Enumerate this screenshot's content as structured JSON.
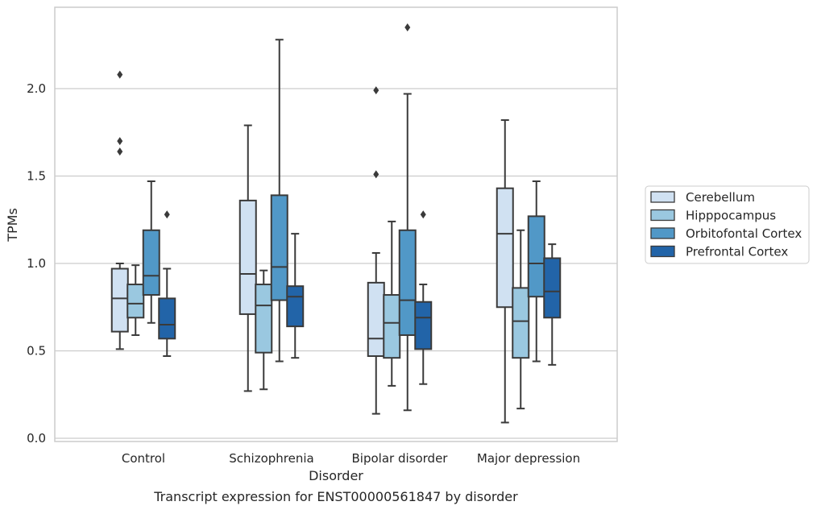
{
  "chart_data": {
    "type": "box",
    "xlabel": "Disorder",
    "ylabel": "TPMs",
    "caption": "Transcript expression for ENST00000561847 by disorder",
    "categories": [
      "Control",
      "Schizophrenia",
      "Bipolar disorder",
      "Major depression"
    ],
    "ylim": [
      -0.02,
      2.45
    ],
    "yticks": [
      "0.0",
      "0.5",
      "1.0",
      "1.5",
      "2.0"
    ],
    "grid": "horizontal",
    "legend_position": "right",
    "series": [
      {
        "name": "Cerebellum",
        "color": "#d0e1f2",
        "boxes": [
          {
            "whisker_low": 0.51,
            "q1": 0.61,
            "median": 0.8,
            "q3": 0.97,
            "whisker_high": 1.0,
            "outliers": [
              2.08,
              1.7,
              1.64
            ]
          },
          {
            "whisker_low": 0.27,
            "q1": 0.71,
            "median": 0.94,
            "q3": 1.36,
            "whisker_high": 1.79,
            "outliers": []
          },
          {
            "whisker_low": 0.14,
            "q1": 0.47,
            "median": 0.57,
            "q3": 0.89,
            "whisker_high": 1.06,
            "outliers": [
              1.99,
              1.51
            ]
          },
          {
            "whisker_low": 0.09,
            "q1": 0.75,
            "median": 1.17,
            "q3": 1.43,
            "whisker_high": 1.82,
            "outliers": []
          }
        ]
      },
      {
        "name": "Hipppocampus",
        "color": "#9ac8e0",
        "boxes": [
          {
            "whisker_low": 0.59,
            "q1": 0.69,
            "median": 0.77,
            "q3": 0.88,
            "whisker_high": 0.99,
            "outliers": []
          },
          {
            "whisker_low": 0.28,
            "q1": 0.49,
            "median": 0.76,
            "q3": 0.88,
            "whisker_high": 0.96,
            "outliers": []
          },
          {
            "whisker_low": 0.3,
            "q1": 0.46,
            "median": 0.66,
            "q3": 0.82,
            "whisker_high": 1.24,
            "outliers": []
          },
          {
            "whisker_low": 0.17,
            "q1": 0.46,
            "median": 0.67,
            "q3": 0.86,
            "whisker_high": 1.19,
            "outliers": []
          }
        ]
      },
      {
        "name": "Orbitofontal Cortex",
        "color": "#5198c7",
        "boxes": [
          {
            "whisker_low": 0.66,
            "q1": 0.82,
            "median": 0.93,
            "q3": 1.19,
            "whisker_high": 1.47,
            "outliers": []
          },
          {
            "whisker_low": 0.44,
            "q1": 0.79,
            "median": 0.98,
            "q3": 1.39,
            "whisker_high": 2.28,
            "outliers": []
          },
          {
            "whisker_low": 0.16,
            "q1": 0.59,
            "median": 0.79,
            "q3": 1.19,
            "whisker_high": 1.97,
            "outliers": [
              2.35
            ]
          },
          {
            "whisker_low": 0.44,
            "q1": 0.81,
            "median": 1.0,
            "q3": 1.27,
            "whisker_high": 1.47,
            "outliers": []
          }
        ]
      },
      {
        "name": "Prefrontal Cortex",
        "color": "#2264a8",
        "boxes": [
          {
            "whisker_low": 0.47,
            "q1": 0.57,
            "median": 0.65,
            "q3": 0.8,
            "whisker_high": 0.97,
            "outliers": [
              1.28
            ]
          },
          {
            "whisker_low": 0.46,
            "q1": 0.64,
            "median": 0.81,
            "q3": 0.87,
            "whisker_high": 1.17,
            "outliers": []
          },
          {
            "whisker_low": 0.31,
            "q1": 0.51,
            "median": 0.69,
            "q3": 0.78,
            "whisker_high": 0.88,
            "outliers": [
              1.28
            ]
          },
          {
            "whisker_low": 0.42,
            "q1": 0.69,
            "median": 0.84,
            "q3": 1.03,
            "whisker_high": 1.11,
            "outliers": []
          }
        ]
      }
    ]
  }
}
